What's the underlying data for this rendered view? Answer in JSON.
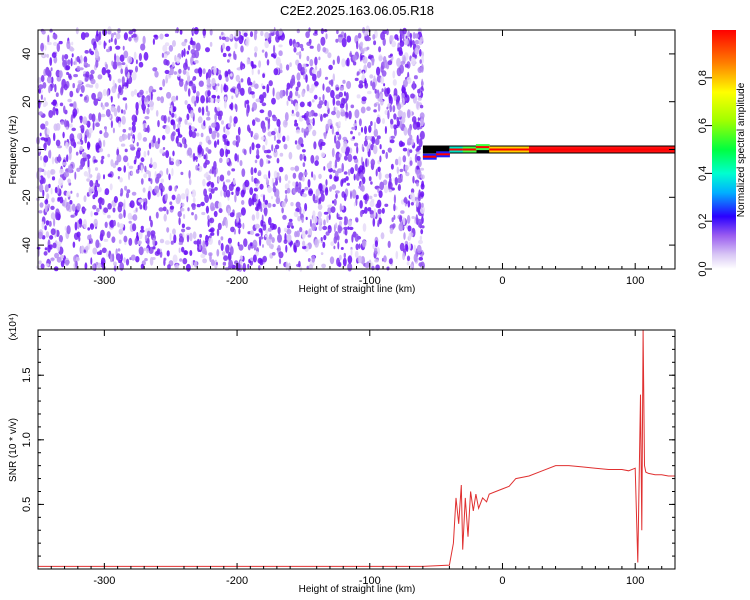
{
  "title": "C2E2.2025.163.06.05.R18",
  "chart_data": [
    {
      "type": "heatmap",
      "title": "",
      "xlabel": "Height of straight line (km)",
      "ylabel": "Frequency (Hz)",
      "xlim": [
        -350,
        130
      ],
      "ylim": [
        -50,
        50
      ],
      "xticks": [
        -300,
        -200,
        -100,
        0,
        100
      ],
      "yticks": [
        -40,
        -20,
        0,
        20,
        40
      ],
      "noise_region_end_km": -60,
      "signal_line": {
        "description": "narrow high-amplitude band near 0 Hz",
        "x": [
          -60,
          -50,
          -40,
          -30,
          -20,
          -10,
          0,
          20,
          50,
          80,
          100,
          110,
          130
        ],
        "frequency_hz": [
          -3,
          -2,
          0,
          0,
          1,
          0,
          0,
          0,
          0,
          0,
          0,
          0,
          0
        ],
        "amplitude": [
          0.3,
          0.4,
          0.55,
          0.6,
          0.7,
          0.75,
          0.8,
          0.9,
          0.95,
          0.95,
          0.9,
          0.9,
          0.95
        ]
      },
      "colorbar": {
        "label": "Normalized spectral amplitude",
        "range": [
          0,
          1
        ],
        "ticks": [
          "0.0",
          "0.2",
          "0.4",
          "0.6",
          "0.8"
        ]
      }
    },
    {
      "type": "line",
      "title": "",
      "xlabel": "Height of straight line (km)",
      "ylabel": "SNR (10 * v/v)",
      "y_multiplier": "(x10⁴)",
      "xlim": [
        -350,
        130
      ],
      "ylim": [
        0,
        1.85
      ],
      "xticks": [
        -300,
        -200,
        -100,
        0,
        100
      ],
      "yticks": [
        "0.5",
        "1.0",
        "1.5"
      ],
      "yticks_values": [
        0.5,
        1.0,
        1.5
      ],
      "color": "#e03030",
      "series": [
        {
          "x": [
            -350,
            -300,
            -250,
            -200,
            -150,
            -100,
            -60,
            -40,
            -37,
            -35,
            -33,
            -31,
            -30,
            -28,
            -26,
            -24,
            -22,
            -20,
            -18,
            -15,
            -12,
            -10,
            -5,
            0,
            5,
            10,
            20,
            30,
            40,
            50,
            60,
            70,
            80,
            90,
            95,
            100,
            102,
            104,
            105,
            106,
            107,
            108,
            110,
            115,
            120,
            125,
            130
          ],
          "y": [
            0.02,
            0.02,
            0.02,
            0.02,
            0.02,
            0.02,
            0.02,
            0.03,
            0.2,
            0.55,
            0.35,
            0.65,
            0.15,
            0.55,
            0.25,
            0.6,
            0.45,
            0.58,
            0.47,
            0.55,
            0.52,
            0.58,
            0.6,
            0.62,
            0.64,
            0.7,
            0.72,
            0.76,
            0.8,
            0.8,
            0.79,
            0.78,
            0.77,
            0.77,
            0.76,
            0.78,
            0.05,
            1.35,
            0.3,
            1.85,
            0.8,
            0.75,
            0.74,
            0.73,
            0.73,
            0.72,
            0.72
          ]
        }
      ]
    }
  ]
}
